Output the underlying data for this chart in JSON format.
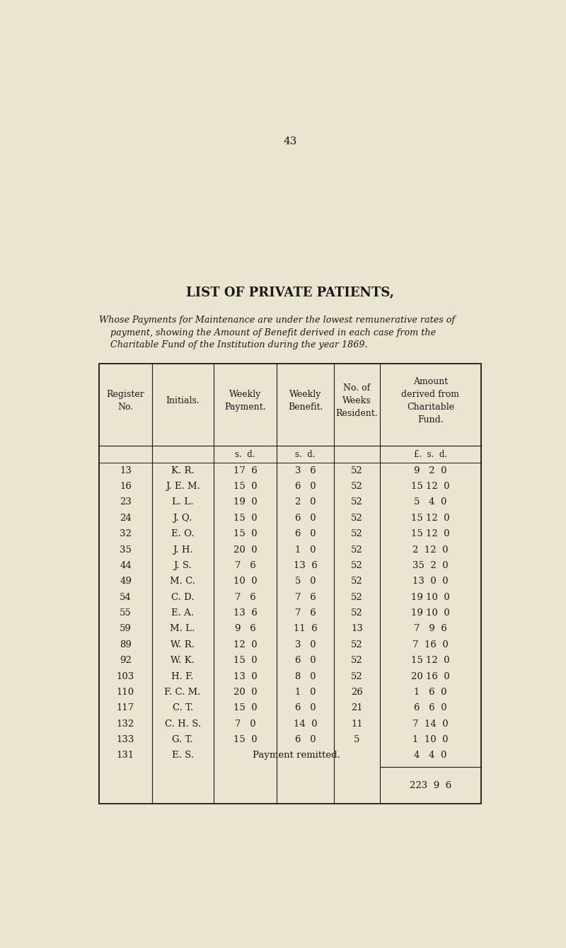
{
  "page_number": "43",
  "title": "LIST OF PRIVATE PATIENTS,",
  "subtitle_line1": "Whose Payments for Maintenance are under the lowest remunerative rates of",
  "subtitle_line2": "payment, showing the Amount of Benefit derived in each case from the",
  "subtitle_line3": "Charitable Fund of the Institution during the year 1869.",
  "bg_color": "#EAE4D0",
  "text_color": "#1a1a1a",
  "col_headers": [
    "Register\nNo.",
    "Initials.",
    "Weekly\nPayment.",
    "Weekly\nBenefit.",
    "No. of\nWeeks\nResident.",
    "Amount\nderived from\nCharitable\nFund."
  ],
  "sub_headers": [
    "",
    "",
    "s.  d.",
    "s.  d.",
    "",
    "£.  s.  d."
  ],
  "rows": [
    [
      "13",
      "K. R.",
      "17  6",
      "3   6",
      "52",
      "9   2  0"
    ],
    [
      "16",
      "J. E. M.",
      "15  0",
      "6   0",
      "52",
      "15 12  0"
    ],
    [
      "23",
      "L. L.",
      "19  0",
      "2   0",
      "52",
      "5   4  0"
    ],
    [
      "24",
      "J. Q.",
      "15  0",
      "6   0",
      "52",
      "15 12  0"
    ],
    [
      "32",
      "E. O.",
      "15  0",
      "6   0",
      "52",
      "15 12  0"
    ],
    [
      "35",
      "J. H.",
      "20  0",
      "1   0",
      "52",
      "2  12  0"
    ],
    [
      "44",
      "J. S.",
      "7   6",
      "13  6",
      "52",
      "35  2  0"
    ],
    [
      "49",
      "M. C.",
      "10  0",
      "5   0",
      "52",
      "13  0  0"
    ],
    [
      "54",
      "C. D.",
      "7   6",
      "7   6",
      "52",
      "19 10  0"
    ],
    [
      "55",
      "E. A.",
      "13  6",
      "7   6",
      "52",
      "19 10  0"
    ],
    [
      "59",
      "M. L.",
      "9   6",
      "11  6",
      "13",
      "7   9  6"
    ],
    [
      "89",
      "W. R.",
      "12  0",
      "3   0",
      "52",
      "7  16  0"
    ],
    [
      "92",
      "W. K.",
      "15  0",
      "6   0",
      "52",
      "15 12  0"
    ],
    [
      "103",
      "H. F.",
      "13  0",
      "8   0",
      "52",
      "20 16  0"
    ],
    [
      "110",
      "F. C. M.",
      "20  0",
      "1   0",
      "26",
      "1   6  0"
    ],
    [
      "117",
      "C. T.",
      "15  0",
      "6   0",
      "21",
      "6   6  0"
    ],
    [
      "132",
      "C. H. S.",
      "7   0",
      "14  0",
      "11",
      "7  14  0"
    ],
    [
      "133",
      "G. T.",
      "15  0",
      "6   0",
      "5",
      "1  10  0"
    ],
    [
      "131",
      "E. S.",
      "",
      "Payment remitted.",
      "",
      "4   4  0"
    ]
  ],
  "total_label": "223  9  6",
  "col_dividers": [
    0.065,
    0.185,
    0.325,
    0.47,
    0.6,
    0.705,
    0.935
  ]
}
